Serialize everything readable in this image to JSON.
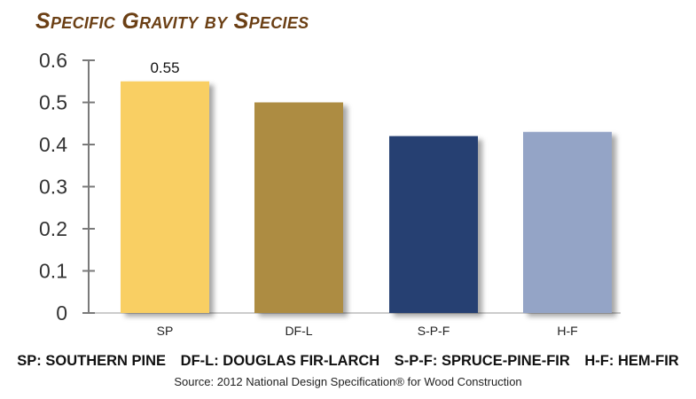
{
  "title": "Specific Gravity by Species",
  "chart_data": {
    "type": "bar",
    "categories": [
      "SP",
      "DF-L",
      "S-P-F",
      "H-F"
    ],
    "values": [
      0.55,
      0.5,
      0.42,
      0.43
    ],
    "data_labels": [
      "0.55",
      "",
      "",
      ""
    ],
    "bar_colors": [
      "#f9cf63",
      "#ad8c42",
      "#263f72",
      "#94a4c6"
    ],
    "ylim": [
      0,
      0.6
    ],
    "yticks": [
      "0",
      "0.1",
      "0.2",
      "0.3",
      "0.4",
      "0.5",
      "0.6"
    ],
    "grid": false
  },
  "legend_items": [
    "SP: SOUTHERN PINE",
    "DF-L: DOUGLAS FIR-LARCH",
    "S-P-F: SPRUCE-PINE-FIR",
    "H-F: HEM-FIR"
  ],
  "source": "Source: 2012 National Design Specification® for Wood Construction"
}
